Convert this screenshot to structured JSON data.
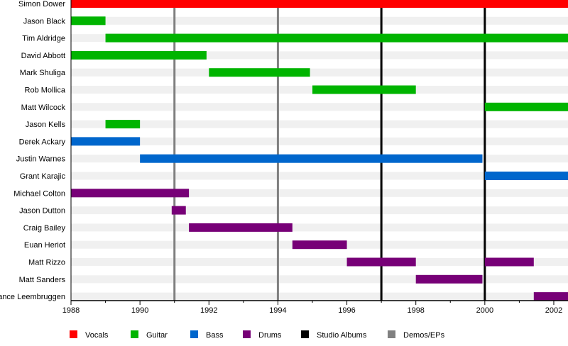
{
  "chart_data": {
    "type": "timeline",
    "title": "",
    "xlim": [
      1988,
      2002.42
    ],
    "x_ticks": [
      1988,
      1990,
      1992,
      1994,
      1996,
      1998,
      2000,
      2002
    ],
    "x_tick_labels": [
      "1988",
      "1990",
      "1992",
      "1994",
      "1996",
      "1998",
      "2000",
      "2002"
    ],
    "minor_tick_step": 1,
    "roles": [
      {
        "name": "Vocals",
        "color": "#ff0000"
      },
      {
        "name": "Guitar",
        "color": "#00b400"
      },
      {
        "name": "Bass",
        "color": "#0066cc"
      },
      {
        "name": "Drums",
        "color": "#770077"
      }
    ],
    "events": [
      {
        "name": "Studio Albums",
        "color": "#000000",
        "years": [
          1997,
          2000
        ]
      },
      {
        "name": "Demos/EPs",
        "color": "#808080",
        "years": [
          1991,
          1994
        ]
      }
    ],
    "legend": [
      "Vocals",
      "Guitar",
      "Bass",
      "Drums",
      "Studio Albums",
      "Demos/EPs"
    ],
    "legend_colors": [
      "#ff0000",
      "#00b400",
      "#0066cc",
      "#770077",
      "#000000",
      "#808080"
    ],
    "members": [
      {
        "name": "Simon Dower",
        "role": "Vocals",
        "periods": [
          [
            1988,
            2002.42
          ]
        ]
      },
      {
        "name": "Jason Black",
        "role": "Guitar",
        "periods": [
          [
            1988,
            1989
          ]
        ]
      },
      {
        "name": "Tim Aldridge",
        "role": "Guitar",
        "periods": [
          [
            1989,
            2002.42
          ]
        ]
      },
      {
        "name": "David Abbott",
        "role": "Guitar",
        "periods": [
          [
            1988,
            1991.93
          ]
        ]
      },
      {
        "name": "Mark Shuliga",
        "role": "Guitar",
        "periods": [
          [
            1992,
            1994.93
          ]
        ]
      },
      {
        "name": "Rob Mollica",
        "role": "Guitar",
        "periods": [
          [
            1995,
            1998
          ]
        ]
      },
      {
        "name": "Matt Wilcock",
        "role": "Guitar",
        "periods": [
          [
            2000,
            2002.42
          ]
        ]
      },
      {
        "name": "Jason Kells",
        "role": "Guitar",
        "periods": [
          [
            1989,
            1990
          ]
        ]
      },
      {
        "name": "Derek Ackary",
        "role": "Bass",
        "periods": [
          [
            1988,
            1990
          ]
        ]
      },
      {
        "name": "Justin Warnes",
        "role": "Bass",
        "periods": [
          [
            1990,
            1999.93
          ]
        ]
      },
      {
        "name": "Grant Karajic",
        "role": "Bass",
        "periods": [
          [
            2000,
            2002.42
          ]
        ]
      },
      {
        "name": "Michael Colton",
        "role": "Drums",
        "periods": [
          [
            1988,
            1991.42
          ]
        ]
      },
      {
        "name": "Jason Dutton",
        "role": "Drums",
        "periods": [
          [
            1990.92,
            1991.33
          ]
        ]
      },
      {
        "name": "Craig Bailey",
        "role": "Drums",
        "periods": [
          [
            1991.42,
            1994.42
          ]
        ]
      },
      {
        "name": "Euan Heriot",
        "role": "Drums",
        "periods": [
          [
            1994.42,
            1996
          ]
        ]
      },
      {
        "name": "Matt Rizzo",
        "role": "Drums",
        "periods": [
          [
            1996,
            1998
          ],
          [
            2000,
            2001.42
          ]
        ]
      },
      {
        "name": "Matt Sanders",
        "role": "Drums",
        "periods": [
          [
            1998,
            1999.93
          ]
        ]
      },
      {
        "name": "Lance Leembruggen",
        "role": "Drums",
        "periods": [
          [
            2001.42,
            2002.42
          ]
        ]
      }
    ]
  }
}
